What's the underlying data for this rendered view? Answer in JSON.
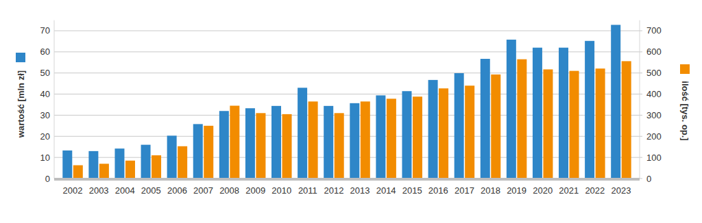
{
  "chart_data": {
    "type": "bar",
    "categories": [
      "2002",
      "2003",
      "2004",
      "2005",
      "2006",
      "2007",
      "2008",
      "2009",
      "2010",
      "2011",
      "2012",
      "2013",
      "2014",
      "2015",
      "2016",
      "2017",
      "2018",
      "2019",
      "2020",
      "2021",
      "2022",
      "2023"
    ],
    "series": [
      {
        "name": "wartość [mln zł]",
        "color": "#2e86c8",
        "values": [
          13.3,
          13.0,
          14.2,
          16.0,
          20.3,
          25.8,
          32.0,
          33.3,
          34.4,
          43.0,
          34.4,
          35.7,
          39.4,
          41.4,
          46.7,
          49.9,
          56.7,
          65.8,
          62.0,
          62.0,
          65.2,
          72.8
        ]
      },
      {
        "name": "ilość [tys. op.]",
        "color": "#f28c00",
        "axis": "y2",
        "values": [
          63,
          70,
          85,
          110,
          153,
          250,
          345,
          310,
          305,
          365,
          310,
          365,
          378,
          388,
          427,
          440,
          493,
          565,
          517,
          510,
          521,
          556
        ]
      }
    ],
    "ylim": [
      0,
      75
    ],
    "yticks": [
      0,
      10,
      20,
      30,
      40,
      50,
      60,
      70
    ],
    "y2lim": [
      0,
      750
    ],
    "y2ticks": [
      0,
      100,
      200,
      300,
      400,
      500,
      600,
      700
    ],
    "grid": true
  }
}
